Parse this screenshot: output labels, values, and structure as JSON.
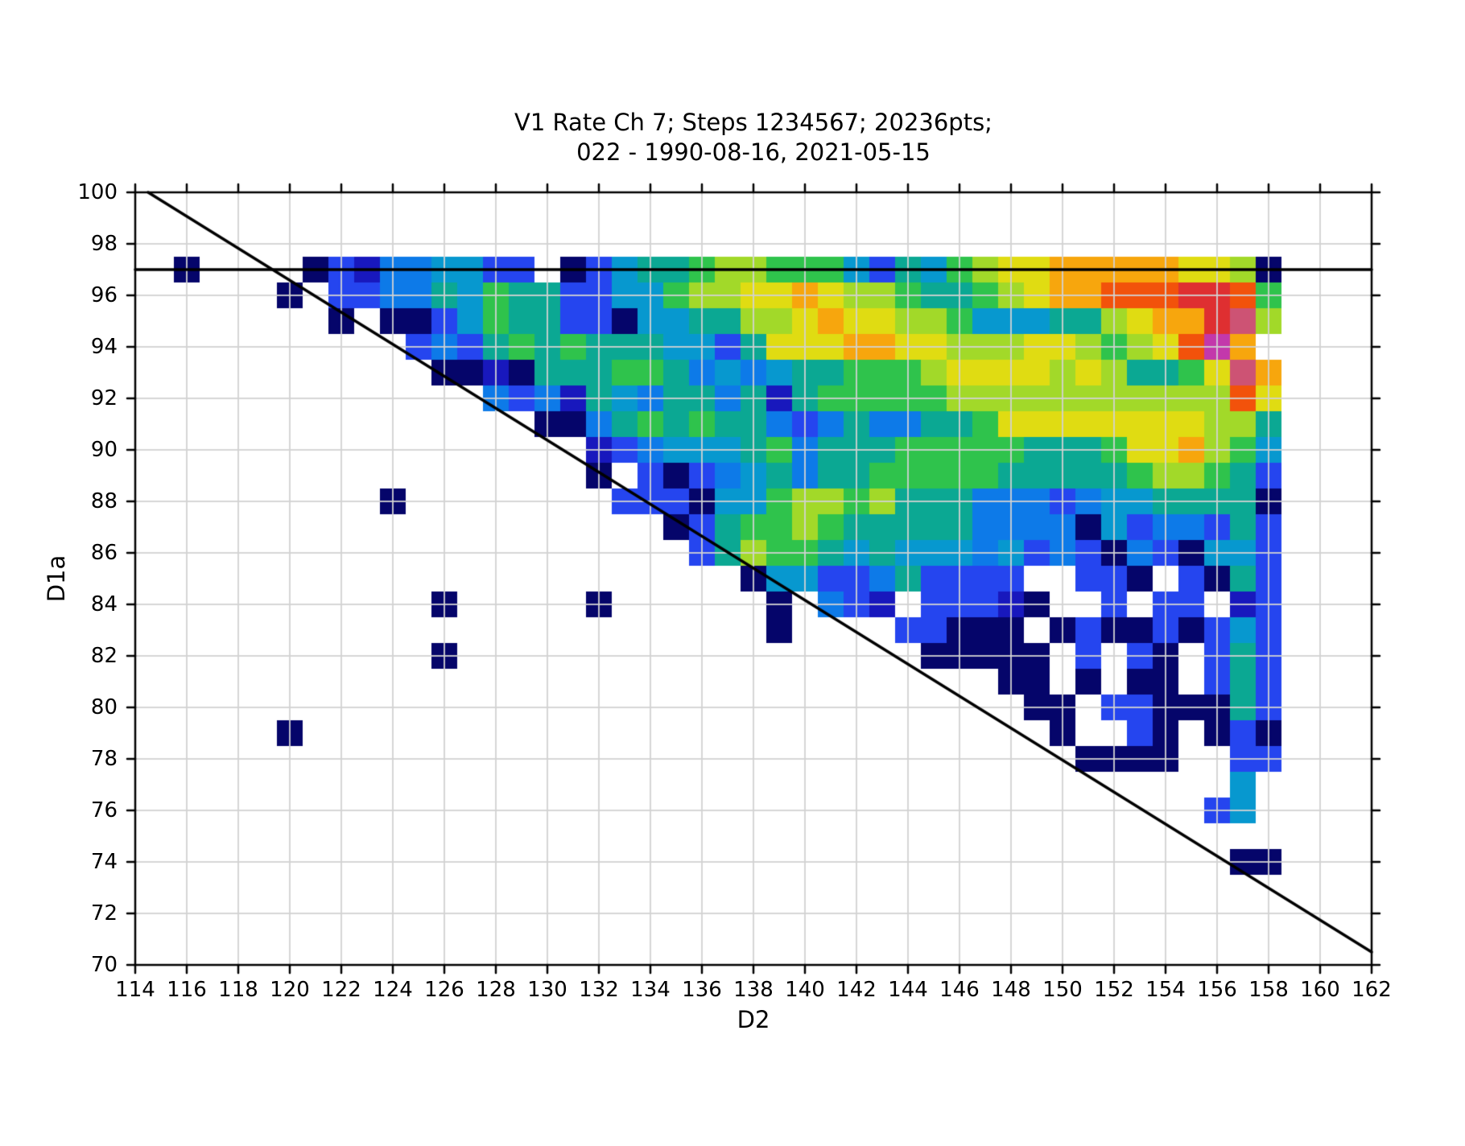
{
  "title": {
    "line1": "V1 Rate Ch 7; Steps 1234567; 20236pts;",
    "line2": "022 - 1990-08-16, 2021-05-15"
  },
  "axes": {
    "xlabel": "D2",
    "ylabel": "D1a"
  },
  "chart_data": {
    "type": "heatmap",
    "title": "V1 Rate Ch 7; Steps 1234567; 20236pts; 022 - 1990-08-16, 2021-05-15",
    "xlabel": "D2",
    "ylabel": "D1a",
    "xlim": [
      114,
      162
    ],
    "ylim": [
      70,
      100
    ],
    "x_ticks": [
      114,
      116,
      118,
      120,
      122,
      124,
      126,
      128,
      130,
      132,
      134,
      136,
      138,
      140,
      142,
      144,
      146,
      148,
      150,
      152,
      154,
      156,
      158,
      160,
      162
    ],
    "y_ticks": [
      70,
      72,
      74,
      76,
      78,
      80,
      82,
      84,
      86,
      88,
      90,
      92,
      94,
      96,
      98,
      100
    ],
    "grid": "on",
    "legend": "none",
    "cell_size_units": [
      1,
      1
    ],
    "heatmap": {
      "col_start": 115,
      "col_end": 158,
      "row_values_d1a": [
        97,
        96,
        95,
        94,
        93,
        92,
        91,
        90,
        89,
        88,
        87,
        86,
        85,
        84,
        83,
        82,
        81,
        80,
        79,
        78,
        77,
        76,
        75,
        74,
        73
      ],
      "rows": [
        ".0....021334422.0245567766642546788999998870",
        ".....0.223354655224467788987765567899AAABBA6",
        ".......0.00246552204455778988776444557899BP7",
        "..........232565655544258889988777887678AM9",
        "...........0010555665343455666788887875568P9",
        ".............32315435535156666677777777777A8",
        "...............00356565532353355688888888775",
        ".................12344456355566666555 6889764",
        ".................0.202345355666665555567 7652",
        ".........0........22204467767555333234455550",
        "....................025667655555333304233252",
        ".....................25766545444342320320442",
        ".......................04422352222..220.2052",
        "...........0.....0......0.321.22210..2.22.12",
        "........................0....22000.020020242",
        "...........0..................00000.2.20.252",
        ".................................00.0.00.252",
        "..................................00.2200052",
        ".....0.............................0..20.020",
        "....................................0000..22",
        "..........................................4.",
        ".........................................24.",
        "............................................",
        "..........................................00",
        "............................................"
      ]
    },
    "palette": {
      "0": "#05056a",
      "1": "#1818bd",
      "2": "#2545ef",
      "3": "#0d7ae8",
      "4": "#0798cf",
      "5": "#0ba893",
      "6": "#2fc34c",
      "7": "#a2d929",
      "8": "#e0dc12",
      "9": "#f7a60d",
      "A": "#f2520b",
      "B": "#df2f31",
      "P": "#cd5374",
      "M": "#c338ab"
    },
    "overlay_lines": [
      {
        "name": "horizontal-threshold-line",
        "x1": 114,
        "y1": 97,
        "x2": 162,
        "y2": 97
      },
      {
        "name": "diagonal-boundary-line",
        "x1": 114.5,
        "y1": 100,
        "x2": 162,
        "y2": 70.5
      }
    ],
    "colors": {
      "background": "#ffffff",
      "axis": "#000000",
      "gridline": "#d2d2d2",
      "overlay_line": "#000000"
    }
  }
}
